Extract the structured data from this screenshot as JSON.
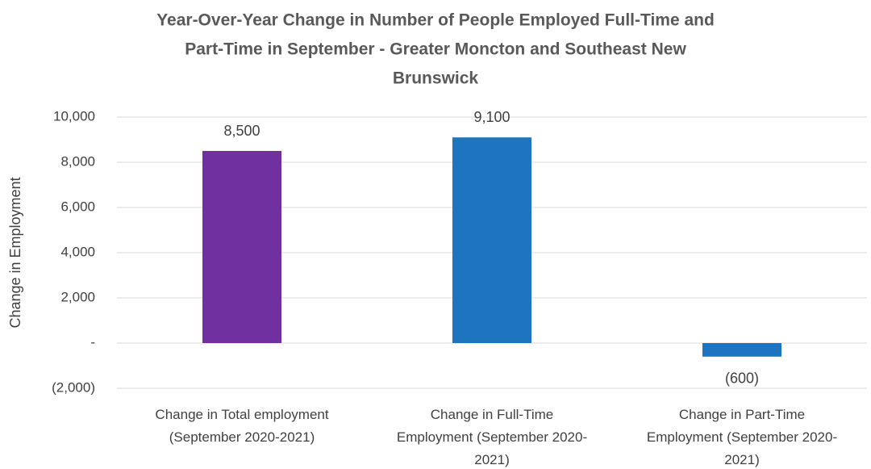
{
  "chart_data": {
    "type": "bar",
    "title_lines": [
      "Year-Over-Year Change in Number of People Employed Full-Time and",
      "Part-Time in September - Greater Moncton and Southeast New",
      "Brunswick"
    ],
    "ylabel": "Change in Employment",
    "ylim": [
      -2000,
      10000
    ],
    "yticks": [
      {
        "value": 10000,
        "label": "10,000"
      },
      {
        "value": 8000,
        "label": "8,000"
      },
      {
        "value": 6000,
        "label": "6,000"
      },
      {
        "value": 4000,
        "label": "4,000"
      },
      {
        "value": 2000,
        "label": "2,000"
      },
      {
        "value": 0,
        "label": "-"
      },
      {
        "value": -2000,
        "label": "(2,000)"
      }
    ],
    "categories": [
      [
        "Change in Total employment",
        "(September 2020-2021)"
      ],
      [
        "Change in Full-Time",
        "Employment (September 2020-",
        "2021)"
      ],
      [
        "Change in Part-Time",
        "Employment (September 2020-",
        "2021)"
      ]
    ],
    "values": [
      8500,
      9100,
      -600
    ],
    "data_labels": [
      "8,500",
      "9,100",
      "(600)"
    ],
    "colors": [
      "#7030a0",
      "#1f74bf",
      "#1f74bf"
    ],
    "grid": true
  }
}
